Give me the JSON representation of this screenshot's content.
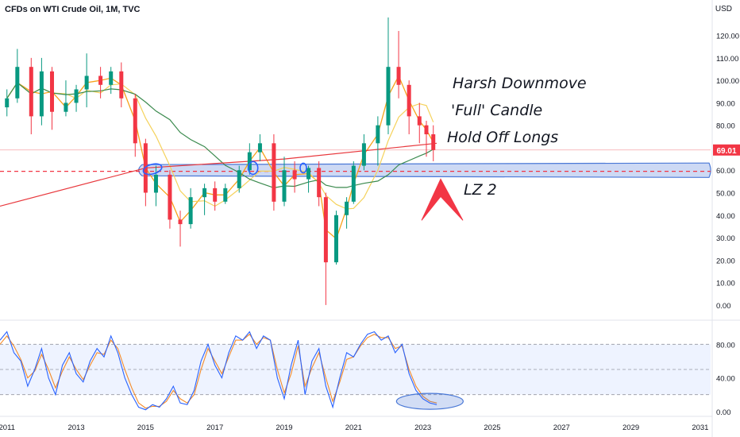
{
  "header": {
    "title": "CFDs on WTI Crude Oil, 1M, TVC",
    "currency": "USD"
  },
  "price_badge": {
    "value": "69.01",
    "color": "#f23645"
  },
  "annotations": [
    {
      "id": "harsh",
      "text": "Harsh Downmove"
    },
    {
      "id": "full",
      "text": "'Full' Candle"
    },
    {
      "id": "hold",
      "text": "Hold Off Longs"
    },
    {
      "id": "lz2",
      "text": "LZ 2"
    }
  ],
  "colors": {
    "bull": "#089981",
    "bear": "#f23645",
    "ma_fast": "#f7a21b",
    "ma_mid": "#f5d25b",
    "ma_slow": "#3b8a4e",
    "ma_long": "#e8383d",
    "zone": "#4a78d6",
    "stoch_k": "#2962ff",
    "stoch_d": "#f48a28"
  },
  "chart_data": [
    {
      "type": "candlestick",
      "ylim": [
        -5,
        128
      ],
      "yticks": [
        "0.00",
        "10.00",
        "20.00",
        "30.00",
        "40.00",
        "50.00",
        "60.00",
        "70.00",
        "80.00",
        "90.00",
        "100.00",
        "110.00",
        "120.00"
      ],
      "xticks": [
        "2011",
        "2013",
        "2015",
        "2017",
        "2019",
        "2021",
        "2023",
        "2025",
        "2027",
        "2029",
        "2031"
      ],
      "xlim": [
        2010.8,
        2031.3
      ],
      "current_price": 69.01,
      "support_level": 59.5,
      "zone_range": [
        57.5,
        62.5
      ],
      "candles": [
        {
          "t": 2011.0,
          "o": 88,
          "h": 96,
          "l": 84,
          "c": 92
        },
        {
          "t": 2011.3,
          "o": 92,
          "h": 114,
          "l": 90,
          "c": 106
        },
        {
          "t": 2011.7,
          "o": 106,
          "h": 110,
          "l": 76,
          "c": 84
        },
        {
          "t": 2012.0,
          "o": 84,
          "h": 110,
          "l": 80,
          "c": 104
        },
        {
          "t": 2012.3,
          "o": 104,
          "h": 106,
          "l": 78,
          "c": 86
        },
        {
          "t": 2012.7,
          "o": 86,
          "h": 100,
          "l": 84,
          "c": 90
        },
        {
          "t": 2013.0,
          "o": 90,
          "h": 98,
          "l": 86,
          "c": 96
        },
        {
          "t": 2013.3,
          "o": 96,
          "h": 112,
          "l": 88,
          "c": 102
        },
        {
          "t": 2013.7,
          "o": 102,
          "h": 106,
          "l": 92,
          "c": 98
        },
        {
          "t": 2014.0,
          "o": 98,
          "h": 106,
          "l": 94,
          "c": 104
        },
        {
          "t": 2014.3,
          "o": 104,
          "h": 108,
          "l": 88,
          "c": 92
        },
        {
          "t": 2014.7,
          "o": 92,
          "h": 94,
          "l": 66,
          "c": 72
        },
        {
          "t": 2015.0,
          "o": 72,
          "h": 74,
          "l": 44,
          "c": 50
        },
        {
          "t": 2015.3,
          "o": 50,
          "h": 62,
          "l": 44,
          "c": 58
        },
        {
          "t": 2015.7,
          "o": 58,
          "h": 60,
          "l": 34,
          "c": 38
        },
        {
          "t": 2016.0,
          "o": 38,
          "h": 42,
          "l": 26,
          "c": 36
        },
        {
          "t": 2016.3,
          "o": 36,
          "h": 52,
          "l": 34,
          "c": 48
        },
        {
          "t": 2016.7,
          "o": 48,
          "h": 54,
          "l": 40,
          "c": 52
        },
        {
          "t": 2017.0,
          "o": 52,
          "h": 55,
          "l": 42,
          "c": 46
        },
        {
          "t": 2017.3,
          "o": 46,
          "h": 54,
          "l": 45,
          "c": 52
        },
        {
          "t": 2017.7,
          "o": 52,
          "h": 62,
          "l": 50,
          "c": 60
        },
        {
          "t": 2018.0,
          "o": 60,
          "h": 72,
          "l": 58,
          "c": 68
        },
        {
          "t": 2018.3,
          "o": 68,
          "h": 76,
          "l": 64,
          "c": 72
        },
        {
          "t": 2018.7,
          "o": 72,
          "h": 76,
          "l": 42,
          "c": 46
        },
        {
          "t": 2019.0,
          "o": 46,
          "h": 66,
          "l": 44,
          "c": 60
        },
        {
          "t": 2019.3,
          "o": 60,
          "h": 64,
          "l": 50,
          "c": 56
        },
        {
          "t": 2019.7,
          "o": 56,
          "h": 62,
          "l": 50,
          "c": 61
        },
        {
          "t": 2020.0,
          "o": 61,
          "h": 64,
          "l": 44,
          "c": 48
        },
        {
          "t": 2020.2,
          "o": 48,
          "h": 50,
          "l": 0,
          "c": 19
        },
        {
          "t": 2020.5,
          "o": 19,
          "h": 42,
          "l": 18,
          "c": 40
        },
        {
          "t": 2020.8,
          "o": 40,
          "h": 48,
          "l": 34,
          "c": 46
        },
        {
          "t": 2021.0,
          "o": 46,
          "h": 64,
          "l": 45,
          "c": 62
        },
        {
          "t": 2021.3,
          "o": 62,
          "h": 76,
          "l": 60,
          "c": 72
        },
        {
          "t": 2021.7,
          "o": 72,
          "h": 84,
          "l": 62,
          "c": 80
        },
        {
          "t": 2022.0,
          "o": 80,
          "h": 128,
          "l": 76,
          "c": 106
        },
        {
          "t": 2022.3,
          "o": 106,
          "h": 122,
          "l": 92,
          "c": 98
        },
        {
          "t": 2022.6,
          "o": 98,
          "h": 100,
          "l": 76,
          "c": 84
        },
        {
          "t": 2022.9,
          "o": 84,
          "h": 90,
          "l": 72,
          "c": 80
        },
        {
          "t": 2023.1,
          "o": 80,
          "h": 82,
          "l": 66,
          "c": 76
        },
        {
          "t": 2023.3,
          "o": 76,
          "h": 80,
          "l": 64,
          "c": 69
        }
      ]
    },
    {
      "type": "line",
      "name": "Stochastic RSI",
      "ylim": [
        -4,
        104
      ],
      "yticks": [
        "0.00",
        "40.00",
        "80.00"
      ],
      "bands": [
        20,
        50,
        80
      ],
      "x": [
        2010.8,
        2011.0,
        2011.2,
        2011.4,
        2011.6,
        2011.8,
        2012.0,
        2012.2,
        2012.4,
        2012.6,
        2012.8,
        2013.0,
        2013.2,
        2013.4,
        2013.6,
        2013.8,
        2014.0,
        2014.2,
        2014.4,
        2014.6,
        2014.8,
        2015.0,
        2015.2,
        2015.4,
        2015.6,
        2015.8,
        2016.0,
        2016.2,
        2016.4,
        2016.6,
        2016.8,
        2017.0,
        2017.2,
        2017.4,
        2017.6,
        2017.8,
        2018.0,
        2018.2,
        2018.4,
        2018.6,
        2018.8,
        2019.0,
        2019.2,
        2019.4,
        2019.6,
        2019.8,
        2020.0,
        2020.2,
        2020.4,
        2020.6,
        2020.8,
        2021.0,
        2021.2,
        2021.4,
        2021.6,
        2021.8,
        2022.0,
        2022.2,
        2022.4,
        2022.6,
        2022.8,
        2023.0,
        2023.2,
        2023.4
      ],
      "k": [
        85,
        95,
        70,
        60,
        30,
        50,
        75,
        40,
        20,
        55,
        70,
        45,
        35,
        60,
        75,
        65,
        90,
        70,
        40,
        20,
        5,
        2,
        8,
        5,
        15,
        30,
        10,
        8,
        25,
        60,
        80,
        55,
        40,
        70,
        90,
        85,
        95,
        75,
        90,
        85,
        40,
        15,
        55,
        85,
        20,
        60,
        75,
        30,
        5,
        40,
        70,
        65,
        80,
        92,
        95,
        85,
        90,
        70,
        80,
        45,
        25,
        15,
        10,
        8
      ],
      "d": [
        80,
        90,
        78,
        62,
        40,
        48,
        68,
        50,
        28,
        48,
        65,
        50,
        38,
        55,
        70,
        68,
        85,
        75,
        50,
        28,
        10,
        4,
        6,
        6,
        12,
        25,
        15,
        10,
        20,
        50,
        75,
        60,
        45,
        65,
        85,
        85,
        92,
        80,
        88,
        85,
        50,
        22,
        45,
        78,
        30,
        52,
        70,
        40,
        12,
        35,
        62,
        65,
        78,
        88,
        92,
        88,
        88,
        75,
        78,
        50,
        30,
        18,
        12,
        10
      ]
    }
  ]
}
